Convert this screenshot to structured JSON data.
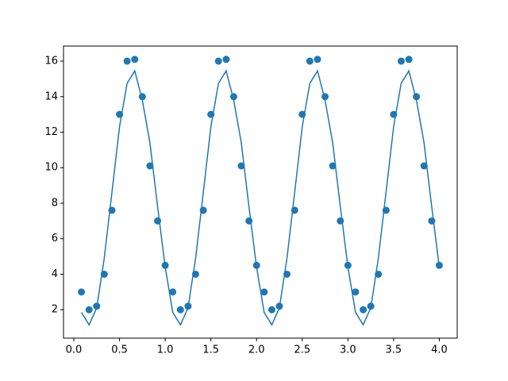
{
  "chart_data": {
    "type": "scatter",
    "x": [
      0.083,
      0.167,
      0.25,
      0.333,
      0.417,
      0.5,
      0.583,
      0.667,
      0.75,
      0.833,
      0.917,
      1,
      1.083,
      1.167,
      1.25,
      1.333,
      1.417,
      1.5,
      1.583,
      1.667,
      1.75,
      1.833,
      1.917,
      2,
      2.083,
      2.167,
      2.25,
      2.333,
      2.417,
      2.5,
      2.583,
      2.667,
      2.75,
      2.833,
      2.917,
      3,
      3.083,
      3.167,
      3.25,
      3.333,
      3.417,
      3.5,
      3.583,
      3.667,
      3.75,
      3.833,
      3.917,
      4
    ],
    "series": [
      {
        "type": "scatter",
        "color": "#1f77b4",
        "values": [
          3,
          2,
          2.2,
          4,
          7.6,
          13,
          16,
          16.1,
          14,
          10.1,
          7,
          4.5,
          3,
          2,
          2.2,
          4,
          7.6,
          13,
          16,
          16.1,
          14,
          10.1,
          7,
          4.5,
          3,
          2,
          2.2,
          4,
          7.6,
          13,
          16,
          16.1,
          14,
          10.1,
          7,
          4.5,
          3,
          2,
          2.2,
          4,
          7.6,
          13,
          16,
          16.1,
          14,
          10.1,
          7,
          4.5
        ]
      },
      {
        "type": "line",
        "color": "#1f77b4",
        "values": [
          1.85,
          1.15,
          2.1,
          4.9,
          8.6,
          12.3,
          14.75,
          15.45,
          13.8,
          11.4,
          7.8,
          4.4,
          1.85,
          1.15,
          2.1,
          4.9,
          8.6,
          12.3,
          14.75,
          15.45,
          13.8,
          11.4,
          7.8,
          4.4,
          1.85,
          1.15,
          2.1,
          4.9,
          8.6,
          12.3,
          14.75,
          15.45,
          13.8,
          11.4,
          7.8,
          4.4,
          1.85,
          1.15,
          2.1,
          4.9,
          8.6,
          12.3,
          14.75,
          15.45,
          13.8,
          11.4,
          7.8,
          4.4
        ]
      }
    ],
    "xlim": [
      -0.113,
      4.196
    ],
    "ylim": [
      0.4,
      16.85
    ],
    "xticks": [
      {
        "value": 0,
        "label": "0.0"
      },
      0.5,
      {
        "value": 1,
        "label": "1.0"
      },
      1.5,
      {
        "value": 2,
        "label": "2.0"
      },
      2.5,
      {
        "value": 3,
        "label": "3.0"
      },
      3.5,
      {
        "value": 4,
        "label": "4.0"
      }
    ],
    "yticks": [
      2,
      4,
      6,
      8,
      10,
      12,
      14,
      16
    ],
    "grid": false
  }
}
